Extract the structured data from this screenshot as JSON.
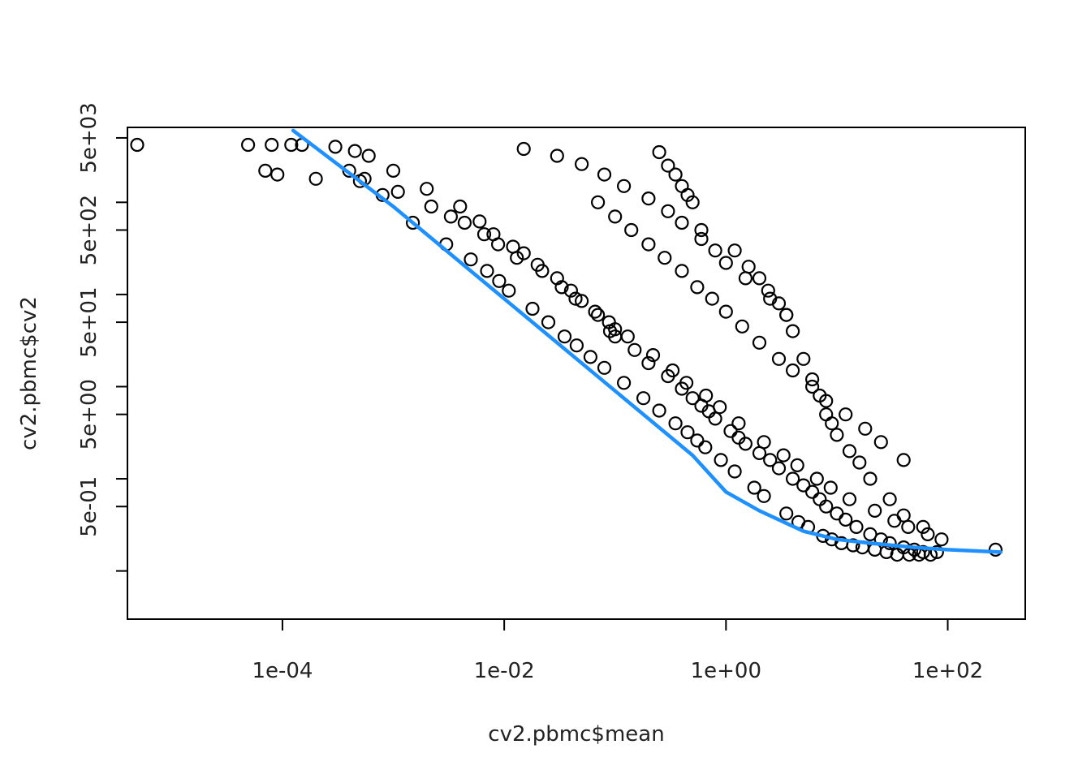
{
  "chart_data": {
    "type": "scatter",
    "title": "",
    "xlabel": "cv2.pbmc$mean",
    "ylabel": "cv2.pbmc$cv2",
    "x_scale": "log10",
    "y_scale": "log10",
    "xlim": [
      4e-06,
      500
    ],
    "ylim": [
      0.03,
      6500
    ],
    "x_ticks": [
      "1e-04",
      "1e-02",
      "1e+00",
      "1e+02"
    ],
    "y_ticks": [
      "5e-01",
      "5e+00",
      "5e+01",
      "5e+02",
      "5e+03"
    ],
    "grid": false,
    "legend": "none",
    "colors": {
      "points": "#000000",
      "fit_line": "#1e90ff",
      "frame": "#000000"
    },
    "fit_line": {
      "x": [
        0.000125,
        0.001,
        0.01,
        0.1,
        0.5,
        1,
        2,
        5,
        10,
        20,
        50,
        100,
        300
      ],
      "y": [
        6000,
        900,
        90,
        9,
        1.8,
        0.72,
        0.45,
        0.27,
        0.22,
        0.2,
        0.18,
        0.17,
        0.16
      ]
    },
    "points": {
      "x": [
        4.9e-06,
        4.9e-05,
        8e-05,
        0.00012,
        0.00015,
        0.0003,
        0.00045,
        0.0006,
        0.001,
        0.002,
        0.004,
        0.006,
        0.008,
        0.012,
        0.015,
        0.02,
        0.03,
        0.04,
        0.05,
        0.07,
        0.1,
        0.09,
        0.1,
        0.15,
        0.2,
        0.3,
        0.4,
        0.5,
        0.6,
        0.7,
        0.8,
        1.1,
        1.3,
        1.5,
        2,
        2.5,
        3,
        4,
        5,
        6,
        7,
        8,
        10,
        12,
        15,
        20,
        25,
        30,
        40,
        50,
        60,
        80,
        270,
        7e-05,
        9e-05,
        0.0002,
        0.0005,
        0.0004,
        0.0008,
        0.0015,
        0.003,
        0.005,
        0.007,
        0.009,
        0.011,
        0.018,
        0.025,
        0.035,
        0.045,
        0.06,
        0.08,
        0.12,
        0.18,
        0.25,
        0.35,
        0.45,
        0.55,
        0.65,
        0.9,
        1.2,
        1.8,
        2.2,
        3.5,
        4.5,
        5.5,
        7.5,
        9,
        11,
        14,
        17,
        22,
        28,
        35,
        45,
        55,
        70,
        0.25,
        0.3,
        0.35,
        0.4,
        0.45,
        0.5,
        0.6,
        1.2,
        1.6,
        2,
        2.4,
        3,
        3.5,
        4,
        5,
        6,
        7,
        8,
        9,
        10,
        13,
        16,
        20,
        30,
        40,
        60,
        0.00055,
        0.0011,
        0.0022,
        0.0033,
        0.0044,
        0.0066,
        0.0088,
        0.013,
        0.022,
        0.033,
        0.044,
        0.066,
        0.088,
        0.13,
        0.22,
        0.33,
        0.44,
        0.66,
        0.88,
        1.3,
        2.2,
        3.3,
        4.4,
        6.6,
        8.8,
        13,
        22,
        33,
        44,
        66,
        88,
        0.015,
        0.03,
        0.05,
        0.08,
        0.12,
        0.2,
        0.3,
        0.4,
        0.6,
        0.8,
        1,
        1.5,
        2.5,
        3.5,
        0.07,
        0.1,
        0.14,
        0.2,
        0.28,
        0.4,
        0.55,
        0.75,
        1,
        1.4,
        2,
        3,
        4,
        6,
        8,
        12,
        18,
        25,
        40
      ],
      "y": [
        4200,
        4200,
        4200,
        4200,
        4200,
        4000,
        3600,
        3200,
        2200,
        1400,
        900,
        620,
        450,
        330,
        280,
        210,
        150,
        110,
        85,
        60,
        42,
        40,
        35,
        25,
        18,
        13,
        9.5,
        7.5,
        6.2,
        5.4,
        4.5,
        3.3,
        2.8,
        2.4,
        1.9,
        1.6,
        1.3,
        1,
        0.85,
        0.72,
        0.6,
        0.5,
        0.42,
        0.36,
        0.3,
        0.25,
        0.22,
        0.2,
        0.18,
        0.17,
        0.16,
        0.16,
        0.17,
        2200,
        2000,
        1800,
        1700,
        2200,
        1200,
        600,
        350,
        240,
        180,
        140,
        110,
        70,
        50,
        35,
        28,
        21,
        16,
        11,
        7.5,
        5.5,
        4,
        3.2,
        2.6,
        2.2,
        1.6,
        1.2,
        0.8,
        0.65,
        0.42,
        0.34,
        0.3,
        0.24,
        0.22,
        0.2,
        0.19,
        0.18,
        0.17,
        0.16,
        0.15,
        0.15,
        0.15,
        0.15,
        3500,
        2500,
        2000,
        1500,
        1200,
        1000,
        500,
        300,
        200,
        150,
        110,
        80,
        60,
        40,
        20,
        12,
        8,
        5,
        4,
        3,
        2,
        1.5,
        1,
        0.6,
        0.4,
        0.3,
        1800,
        1300,
        900,
        700,
        600,
        450,
        350,
        250,
        180,
        120,
        90,
        65,
        50,
        35,
        22,
        15,
        11,
        8,
        6,
        4,
        2.5,
        1.8,
        1.4,
        1,
        0.8,
        0.6,
        0.45,
        0.35,
        0.3,
        0.25,
        0.22,
        3800,
        3200,
        2600,
        2000,
        1500,
        1100,
        800,
        600,
        400,
        300,
        220,
        150,
        90,
        60,
        1000,
        700,
        500,
        350,
        250,
        180,
        120,
        90,
        65,
        45,
        30,
        20,
        15,
        10,
        7,
        5,
        3.5,
        2.5,
        1.6
      ]
    }
  }
}
